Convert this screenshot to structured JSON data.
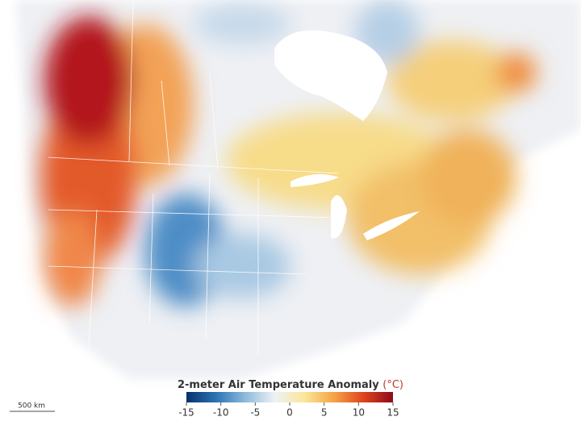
{
  "legend": {
    "title": "2-meter Air Temperature Anomaly",
    "unit": "(°C)",
    "range": [
      -15,
      15
    ],
    "ticks": [
      -15,
      -10,
      -5,
      0,
      5,
      10,
      15
    ],
    "colors": [
      "#08306b",
      "#2c73b4",
      "#8dbbdc",
      "#eef2f6",
      "#fbe69a",
      "#f4a445",
      "#e0431f",
      "#8c0a1a"
    ],
    "unit_color": "#c0392b"
  },
  "scale_bar": {
    "label": "500 km"
  }
}
